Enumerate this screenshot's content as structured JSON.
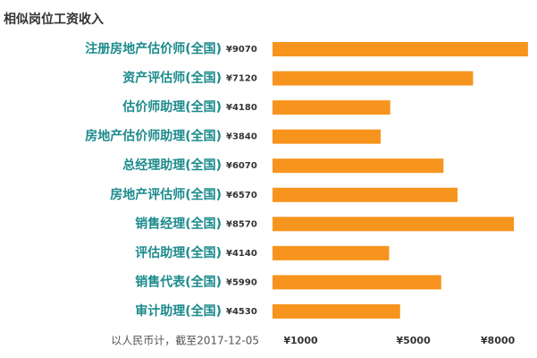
{
  "chart_data": {
    "type": "bar",
    "orientation": "horizontal",
    "title": "相似岗位工资收入",
    "categories": [
      "注册房地产估价师(全国)",
      "资产评估师(全国)",
      "估价师助理(全国)",
      "房地产估价师助理(全国)",
      "总经理助理(全国)",
      "房地产评估师(全国)",
      "销售经理(全国)",
      "评估助理(全国)",
      "销售代表(全国)",
      "审计助理(全国)"
    ],
    "values": [
      9070,
      7120,
      4180,
      3840,
      6070,
      6570,
      8570,
      4140,
      5990,
      4530
    ],
    "value_labels": [
      "¥9070",
      "¥7120",
      "¥4180",
      "¥3840",
      "¥6070",
      "¥6570",
      "¥8570",
      "¥4140",
      "¥5990",
      "¥4530"
    ],
    "color": "#f7941d",
    "xlim": [
      0,
      9200
    ],
    "xticks": [
      {
        "value": 1000,
        "label": "¥1000"
      },
      {
        "value": 5000,
        "label": "¥5000"
      },
      {
        "value": 8000,
        "label": "¥8000"
      }
    ],
    "grid": false,
    "note": "以人民币计，截至2017-12-05"
  }
}
